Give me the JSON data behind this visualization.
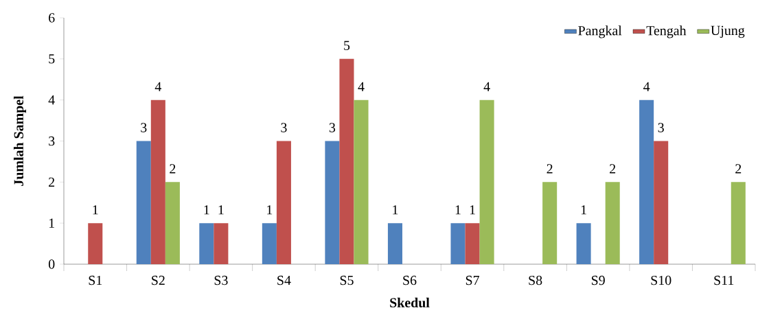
{
  "chart_data": {
    "type": "bar",
    "xlabel": "Skedul",
    "ylabel": "Jumlah Sampel",
    "categories": [
      "S1",
      "S2",
      "S3",
      "S4",
      "S5",
      "S6",
      "S7",
      "S8",
      "S9",
      "S10",
      "S11"
    ],
    "series": [
      {
        "name": "Pangkal",
        "color": "#4f81bd",
        "values": [
          0,
          3,
          1,
          1,
          3,
          1,
          1,
          0,
          1,
          4,
          0
        ],
        "value_labels": [
          null,
          "3",
          "1",
          "1",
          "3",
          "1",
          "1",
          null,
          "1",
          "4",
          null
        ]
      },
      {
        "name": "Tengah",
        "color": "#c0504d",
        "values": [
          1,
          4,
          1,
          3,
          5,
          0,
          1,
          0,
          0,
          3,
          0
        ],
        "value_labels": [
          "1",
          "4",
          "1",
          "3",
          "5",
          null,
          "1",
          null,
          null,
          "3",
          null
        ]
      },
      {
        "name": "Ujung",
        "color": "#9bbb59",
        "values": [
          0,
          2,
          0,
          0,
          4,
          0,
          4,
          2,
          2,
          0,
          2
        ],
        "value_labels": [
          null,
          "2",
          null,
          null,
          "4",
          null,
          "4",
          "2",
          "2",
          null,
          "2"
        ]
      }
    ],
    "ylim": [
      0,
      6
    ],
    "yticks": [
      0,
      1,
      2,
      3,
      4,
      5,
      6
    ],
    "grid": false,
    "legend": "top right"
  }
}
